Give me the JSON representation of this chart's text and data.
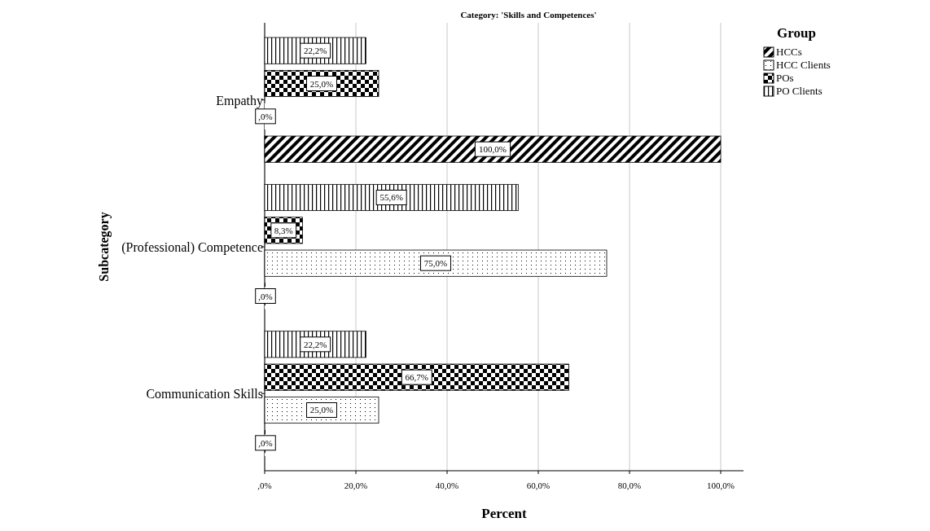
{
  "chart_data": {
    "type": "bar",
    "orientation": "horizontal",
    "title": "Category: 'Skills and Competences'",
    "xlabel": "Percent",
    "ylabel": "Subcategory",
    "legend_title": "Group",
    "categories": [
      "Empathy",
      "(Professional) Competence",
      "Communication Skills"
    ],
    "series": [
      {
        "name": "HCCs",
        "color": "#000000",
        "values": [
          100,
          0,
          0
        ],
        "value_labels": [
          "100,0%",
          ",0%",
          ",0%"
        ]
      },
      {
        "name": "HCC Clients",
        "color": "#000000",
        "values": [
          0,
          75,
          25
        ],
        "value_labels": [
          ",0%",
          "75,0%",
          "25,0%"
        ]
      },
      {
        "name": "POs",
        "color": "#000000",
        "values": [
          25,
          8.3,
          66.7
        ],
        "value_labels": [
          "25,0%",
          "8,3%",
          "66,7%"
        ]
      },
      {
        "name": "PO Clients",
        "color": "#000000",
        "values": [
          22.2,
          55.6,
          22.2
        ],
        "value_labels": [
          "22,2%",
          "55,6%",
          "22,2%"
        ]
      }
    ],
    "xlim": [
      0,
      105
    ],
    "xticks": [
      {
        "value": 0,
        "label": ",0%"
      },
      {
        "value": 20,
        "label": "20,0%"
      },
      {
        "value": 40,
        "label": "40,0%"
      },
      {
        "value": 60,
        "label": "60,0%"
      },
      {
        "value": 80,
        "label": "80,0%"
      },
      {
        "value": 100,
        "label": "100,0%"
      }
    ],
    "grid": "x",
    "legend": "top right"
  }
}
